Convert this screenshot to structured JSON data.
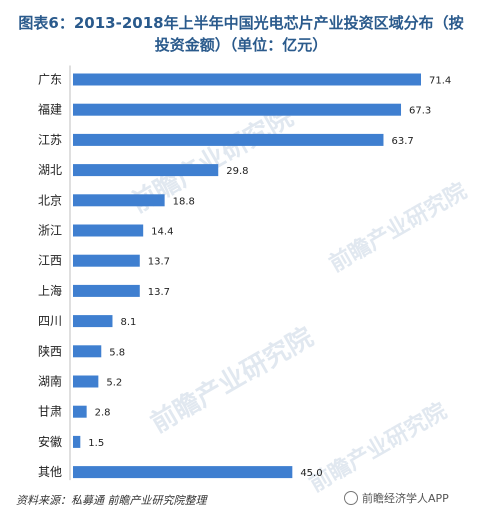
{
  "title_line1": "图表6：2013-2018年上半年中国光电芯片产业投资区域分布（按",
  "title_line2": "投资金额）（单位：亿元）",
  "footer_source": "资料来源：私募通  前瞻产业研究院整理",
  "wechat_label": "前瞻经济学人APP",
  "watermark_text": "前瞻产业研究院",
  "colors": {
    "bar": "#3f7fd0",
    "title": "#2a5a8c"
  },
  "chart_data": {
    "type": "bar",
    "orientation": "horizontal",
    "categories": [
      "广东",
      "福建",
      "江苏",
      "湖北",
      "北京",
      "浙江",
      "江西",
      "上海",
      "四川",
      "陕西",
      "湖南",
      "甘肃",
      "安徽",
      "其他"
    ],
    "values": [
      71.4,
      67.3,
      63.7,
      29.8,
      18.8,
      14.4,
      13.7,
      13.7,
      8.1,
      5.8,
      5.2,
      2.8,
      1.5,
      45.0
    ],
    "value_labels": [
      "71.4",
      "67.3",
      "63.7",
      "29.8",
      "18.8",
      "14.4",
      "13.7",
      "13.7",
      "8.1",
      "5.8",
      "5.2",
      "2.8",
      "1.5",
      "45.0"
    ],
    "xlim": [
      0,
      71.4
    ],
    "grid": false,
    "legend": "none"
  }
}
